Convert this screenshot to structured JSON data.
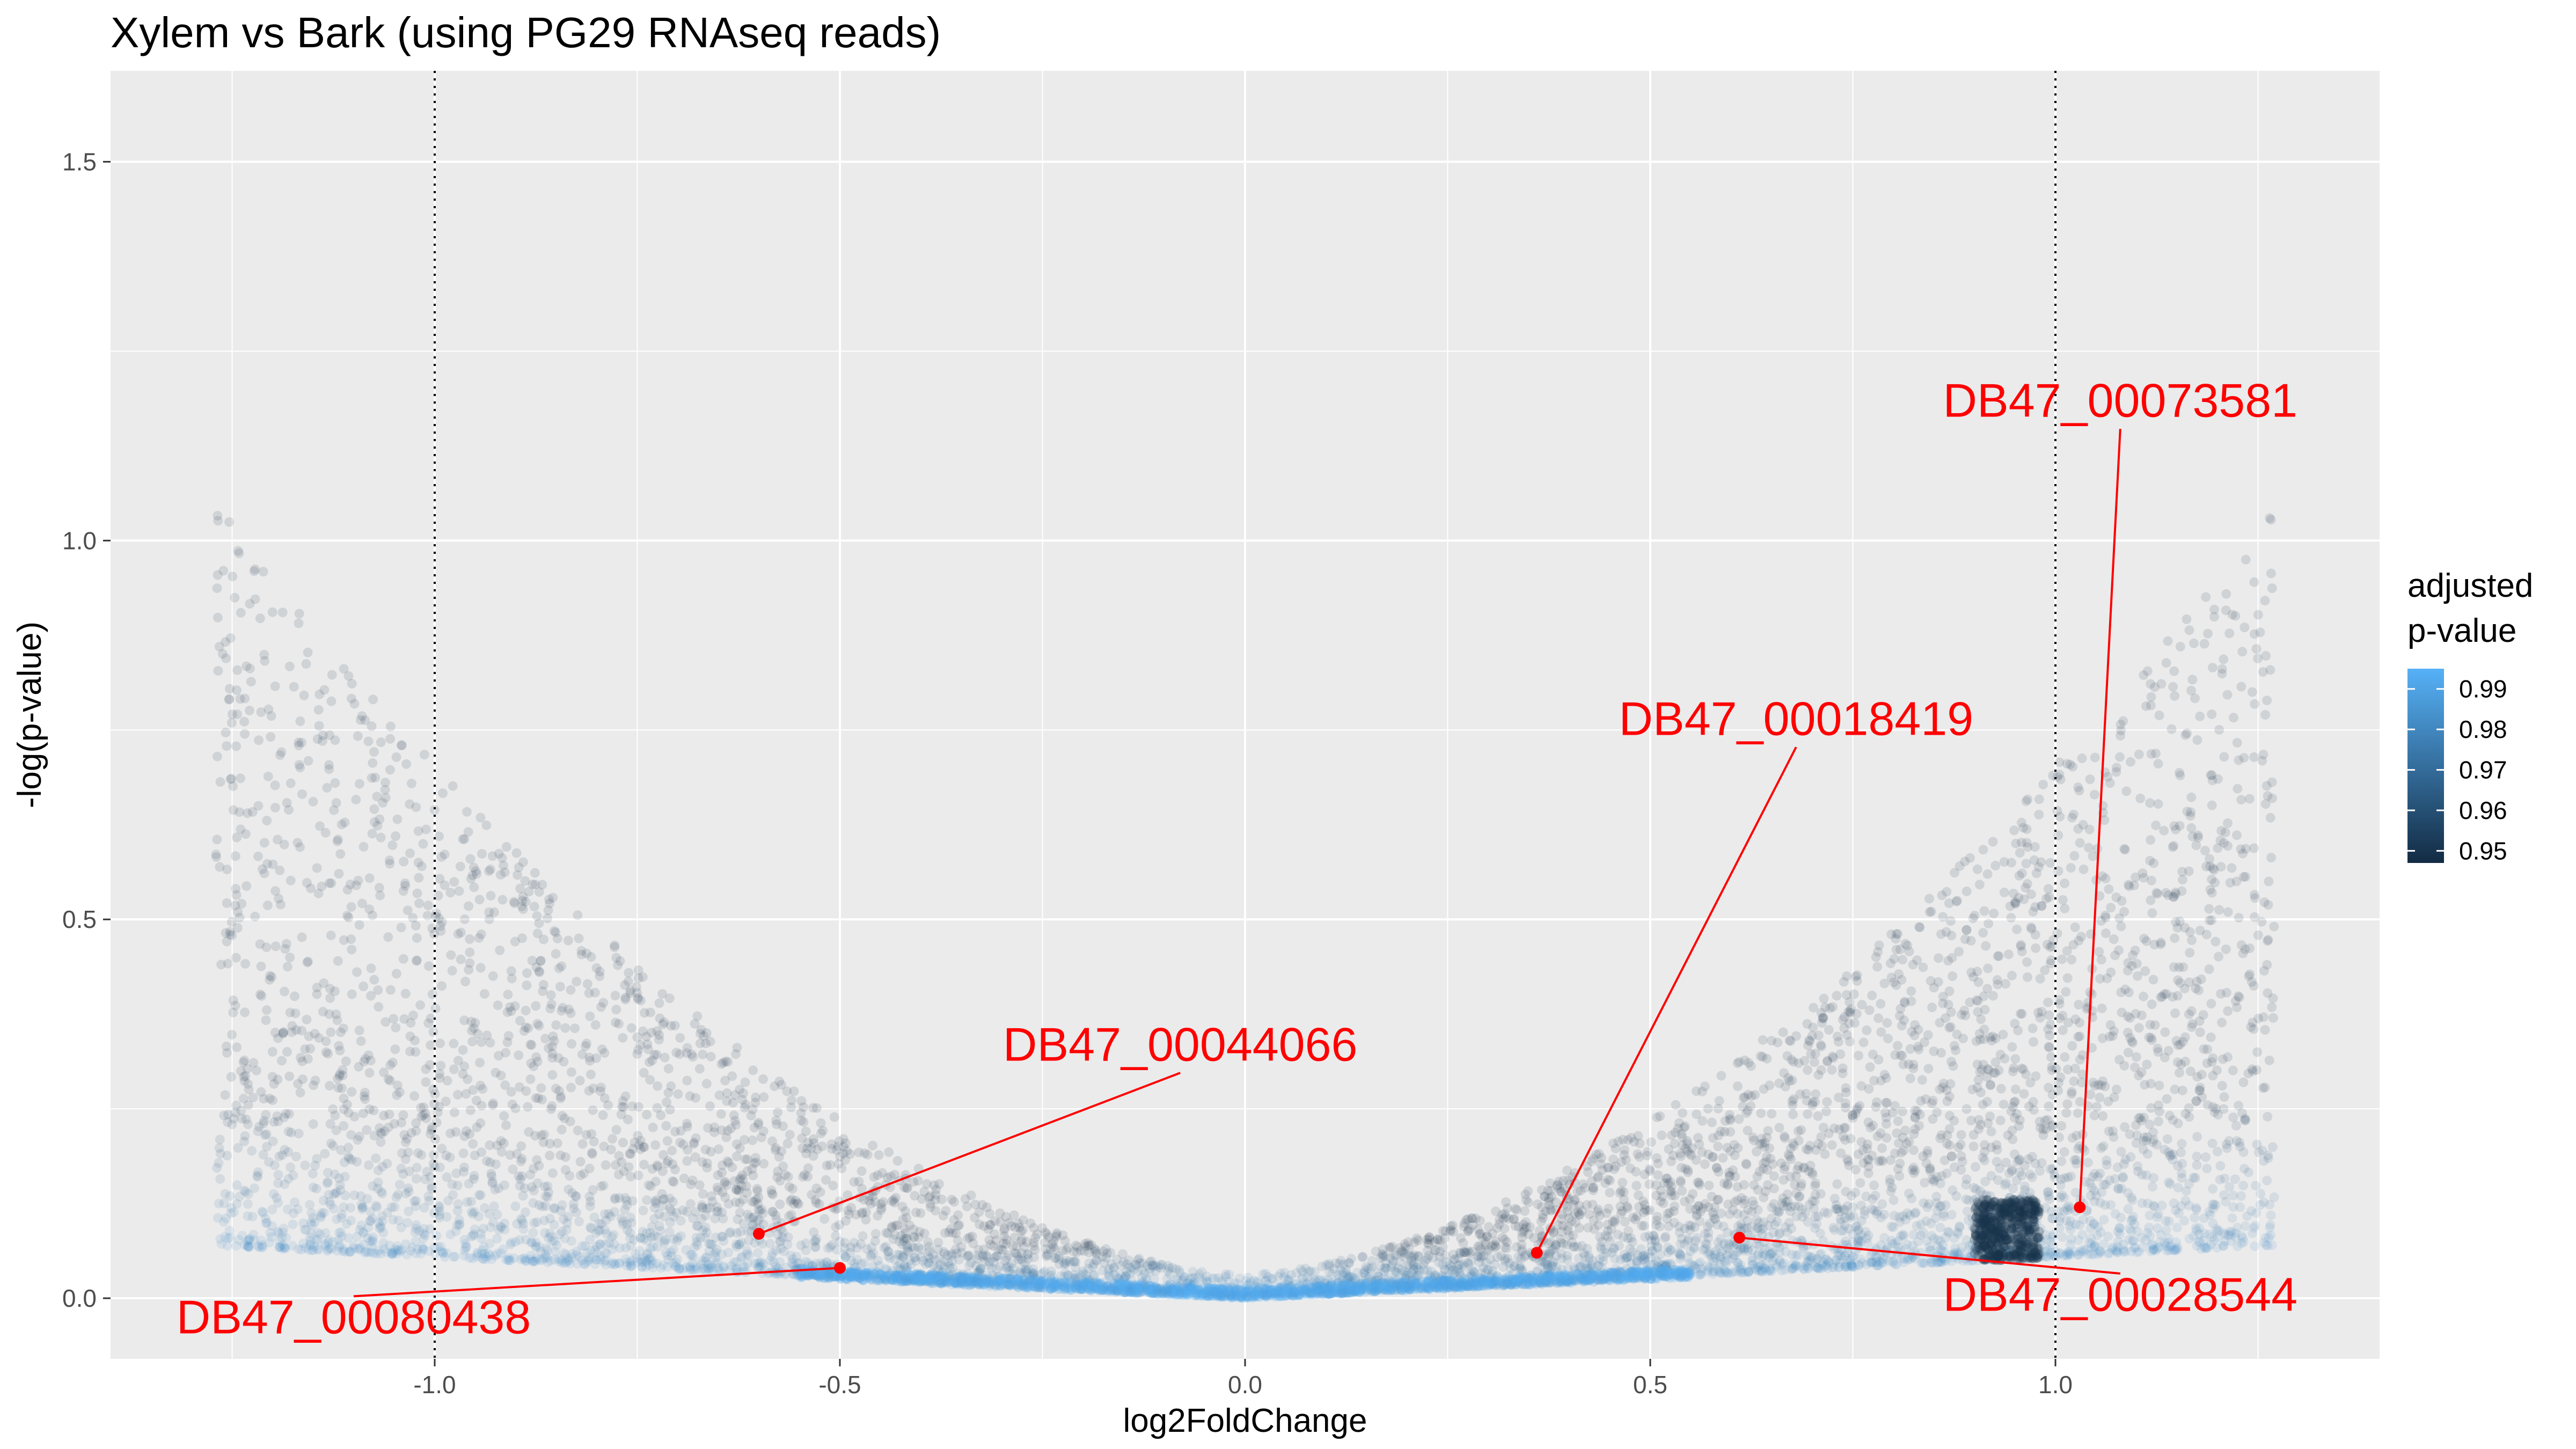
{
  "chart_data": {
    "type": "scatter",
    "title": "Xylem vs Bark (using PG29 RNAseq reads)",
    "xlabel": "log2FoldChange",
    "ylabel": "-log(p-value)",
    "xlim": [
      -1.4,
      1.4
    ],
    "ylim": [
      -0.08,
      1.62
    ],
    "x_ticks": [
      -1.0,
      -0.5,
      0.0,
      0.5,
      1.0
    ],
    "x_tick_labels": [
      "-1.0",
      "-0.5",
      "0.0",
      "0.5",
      "1.0"
    ],
    "y_ticks": [
      0.0,
      0.5,
      1.0,
      1.5
    ],
    "y_tick_labels": [
      "0.0",
      "0.5",
      "1.0",
      "1.5"
    ],
    "vlines": [
      -1.0,
      1.0
    ],
    "grid": true,
    "background": "#ebebeb",
    "point_alpha": 0.12,
    "legend": {
      "title_lines": [
        "adjusted",
        "p-value"
      ],
      "placement": "right",
      "ticks": [
        0.99,
        0.98,
        0.97,
        0.96,
        0.95
      ],
      "tick_labels": [
        "0.99",
        "0.98",
        "0.97",
        "0.96",
        "0.95"
      ],
      "range": [
        0.947,
        0.995
      ],
      "color_low": "#132b43",
      "color_high": "#56b1f7"
    },
    "annotations": [
      {
        "label": "DB47_00073581",
        "x": 1.03,
        "y": 0.12,
        "text_x": 1.08,
        "text_y": 1.18
      },
      {
        "label": "DB47_00018419",
        "x": 0.36,
        "y": 0.06,
        "text_x": 0.68,
        "text_y": 0.76
      },
      {
        "label": "DB47_00044066",
        "x": -0.6,
        "y": 0.085,
        "text_x": -0.08,
        "text_y": 0.33
      },
      {
        "label": "DB47_00080438",
        "x": -0.5,
        "y": 0.04,
        "text_x": -1.1,
        "text_y": -0.03
      },
      {
        "label": "DB47_00028544",
        "x": 0.61,
        "y": 0.08,
        "text_x": 1.08,
        "text_y": 0.0
      }
    ],
    "annotation_color": "#ff0000"
  }
}
